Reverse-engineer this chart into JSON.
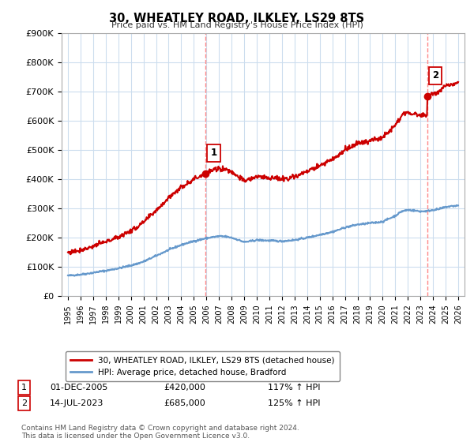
{
  "title": "30, WHEATLEY ROAD, ILKLEY, LS29 8TS",
  "subtitle": "Price paid vs. HM Land Registry's House Price Index (HPI)",
  "ylim": [
    0,
    900000
  ],
  "yticks": [
    0,
    100000,
    200000,
    300000,
    400000,
    500000,
    600000,
    700000,
    800000,
    900000
  ],
  "ytick_labels": [
    "£0",
    "£100K",
    "£200K",
    "£300K",
    "£400K",
    "£500K",
    "£600K",
    "£700K",
    "£800K",
    "£900K"
  ],
  "hpi_color": "#6699cc",
  "price_color": "#cc0000",
  "marker_color": "#cc0000",
  "vline_color": "#ff8888",
  "background_color": "#ffffff",
  "grid_color": "#ccddee",
  "sale1_x": 2005.92,
  "sale1_y": 420000,
  "sale1_label": "1",
  "sale2_x": 2023.54,
  "sale2_y": 685000,
  "sale2_label": "2",
  "legend_line1": "30, WHEATLEY ROAD, ILKLEY, LS29 8TS (detached house)",
  "legend_line2": "HPI: Average price, detached house, Bradford",
  "footer": "Contains HM Land Registry data © Crown copyright and database right 2024.\nThis data is licensed under the Open Government Licence v3.0.",
  "xlim_start": 1994.5,
  "xlim_end": 2026.5,
  "years_hpi": [
    1995,
    1995.5,
    1996,
    1996.5,
    1997,
    1997.5,
    1998,
    1998.5,
    1999,
    1999.5,
    2000,
    2000.5,
    2001,
    2001.5,
    2002,
    2002.5,
    2003,
    2003.5,
    2004,
    2004.5,
    2005,
    2005.5,
    2006,
    2006.5,
    2007,
    2007.5,
    2008,
    2008.5,
    2009,
    2009.5,
    2010,
    2010.5,
    2011,
    2011.5,
    2012,
    2012.5,
    2013,
    2013.5,
    2014,
    2014.5,
    2015,
    2015.5,
    2016,
    2016.5,
    2017,
    2017.5,
    2018,
    2018.5,
    2019,
    2019.5,
    2020,
    2020.5,
    2021,
    2021.5,
    2022,
    2022.5,
    2023,
    2023.5,
    2024,
    2024.5,
    2025,
    2025.5,
    2026
  ],
  "hpi_vals": [
    70000,
    72000,
    74000,
    77000,
    80000,
    84000,
    87000,
    91000,
    95000,
    100000,
    105000,
    111000,
    118000,
    128000,
    138000,
    148000,
    158000,
    167000,
    175000,
    182000,
    188000,
    193000,
    198000,
    202000,
    205000,
    204000,
    200000,
    193000,
    185000,
    188000,
    192000,
    191000,
    190000,
    189000,
    188000,
    190000,
    192000,
    196000,
    200000,
    205000,
    210000,
    215000,
    220000,
    227000,
    235000,
    240000,
    245000,
    247000,
    250000,
    252000,
    255000,
    265000,
    275000,
    290000,
    295000,
    293000,
    290000,
    291000,
    295000,
    298000,
    305000,
    308000,
    310000
  ]
}
